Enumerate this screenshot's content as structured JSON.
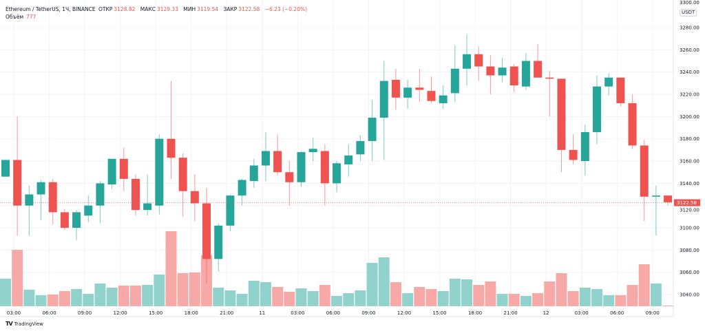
{
  "header": {
    "symbol": "Ethereum / TetherUS, 1Ч, BINANCE",
    "open_label": "ОТКР",
    "open": "3128.82",
    "high_label": "МАКС",
    "high": "3129.33",
    "low_label": "МИН",
    "low": "3119.54",
    "close_label": "ЗАКР",
    "close": "3122.58",
    "change": "−6.23 (−0.20%)",
    "volume_label": "Объём",
    "volume": "777"
  },
  "currency": "USDT",
  "branding": "TradingView",
  "colors": {
    "up": "#26a69a",
    "down": "#ef5350",
    "up_volume": "#92d2cc",
    "down_volume": "#f7a9a7",
    "grid": "#f0f3fa"
  },
  "chart_data": {
    "type": "candlestick",
    "title": "Ethereum / TetherUS, 1Ч, BINANCE",
    "ylim": [
      3030,
      3300
    ],
    "yticks": [
      "3280.00",
      "3260.00",
      "3240.00",
      "3220.00",
      "3200.00",
      "3180.00",
      "3160.00",
      "3140.00",
      "3120.00",
      "3100.00",
      "3080.00",
      "3060.00",
      "3040.00"
    ],
    "ytick_top_partial": "3300.00",
    "last_price": "3122.58",
    "grid": true,
    "xticks": [
      "03:00",
      "06:00",
      "09:00",
      "12:00",
      "15:00",
      "18:00",
      "21:00",
      "11",
      "03:00",
      "06:00",
      "09:00",
      "12:00",
      "15:00",
      "18:00",
      "21:00",
      "12",
      "03:00",
      "06:00",
      "09:00"
    ],
    "ohlc": [
      [
        3146,
        3161,
        3146,
        3161
      ],
      [
        3161,
        3200,
        3093,
        3120
      ],
      [
        3120,
        3138,
        3093,
        3130
      ],
      [
        3130,
        3143,
        3107,
        3141
      ],
      [
        3141,
        3144,
        3103,
        3114
      ],
      [
        3114,
        3117,
        3098,
        3100
      ],
      [
        3100,
        3116,
        3089,
        3114
      ],
      [
        3111,
        3129,
        3105,
        3120
      ],
      [
        3120,
        3142,
        3104,
        3140
      ],
      [
        3139,
        3162,
        3135,
        3162
      ],
      [
        3162,
        3172,
        3133,
        3144
      ],
      [
        3144,
        3148,
        3111,
        3116
      ],
      [
        3116,
        3148,
        3111,
        3122
      ],
      [
        3120,
        3184,
        3112,
        3180
      ],
      [
        3180,
        3232,
        3144,
        3163
      ],
      [
        3163,
        3167,
        3110,
        3133
      ],
      [
        3133,
        3148,
        3106,
        3122
      ],
      [
        3122,
        3136,
        3050,
        3072
      ],
      [
        3072,
        3104,
        3061,
        3102
      ],
      [
        3102,
        3130,
        3097,
        3129
      ],
      [
        3129,
        3144,
        3120,
        3143
      ],
      [
        3142,
        3162,
        3136,
        3156
      ],
      [
        3156,
        3186,
        3142,
        3169
      ],
      [
        3169,
        3184,
        3147,
        3150
      ],
      [
        3150,
        3160,
        3120,
        3141
      ],
      [
        3141,
        3169,
        3137,
        3168
      ],
      [
        3168,
        3181,
        3160,
        3171
      ],
      [
        3169,
        3175,
        3120,
        3140
      ],
      [
        3140,
        3160,
        3132,
        3158
      ],
      [
        3157,
        3175,
        3146,
        3165
      ],
      [
        3166,
        3183,
        3160,
        3178
      ],
      [
        3178,
        3215,
        3160,
        3199
      ],
      [
        3199,
        3250,
        3161,
        3232
      ],
      [
        3233,
        3243,
        3206,
        3217
      ],
      [
        3217,
        3233,
        3207,
        3226
      ],
      [
        3226,
        3243,
        3213,
        3224
      ],
      [
        3223,
        3236,
        3212,
        3214
      ],
      [
        3212,
        3228,
        3207,
        3219
      ],
      [
        3221,
        3264,
        3213,
        3243
      ],
      [
        3243,
        3274,
        3228,
        3256
      ],
      [
        3256,
        3263,
        3232,
        3245
      ],
      [
        3245,
        3255,
        3220,
        3237
      ],
      [
        3237,
        3253,
        3231,
        3244
      ],
      [
        3245,
        3247,
        3222,
        3228
      ],
      [
        3227,
        3257,
        3224,
        3250
      ],
      [
        3250,
        3265,
        3235,
        3235
      ],
      [
        3235,
        3241,
        3200,
        3234
      ],
      [
        3234,
        3234,
        3150,
        3170
      ],
      [
        3170,
        3184,
        3157,
        3161
      ],
      [
        3160,
        3193,
        3147,
        3186
      ],
      [
        3186,
        3237,
        3175,
        3227
      ],
      [
        3227,
        3239,
        3219,
        3235
      ],
      [
        3235,
        3235,
        3209,
        3212
      ],
      [
        3212,
        3220,
        3171,
        3174
      ],
      [
        3174,
        3179,
        3106,
        3128
      ],
      [
        3128,
        3138,
        3093,
        3129
      ],
      [
        3129,
        3129,
        3120,
        3123
      ]
    ],
    "ohlc_order": [
      "open",
      "high",
      "low",
      "close"
    ],
    "volume": [
      40,
      82,
      24,
      16,
      17,
      22,
      25,
      18,
      33,
      27,
      30,
      30,
      31,
      46,
      109,
      48,
      49,
      74,
      27,
      23,
      18,
      37,
      35,
      28,
      21,
      26,
      22,
      31,
      15,
      19,
      23,
      63,
      71,
      35,
      19,
      28,
      25,
      22,
      40,
      39,
      31,
      36,
      18,
      18,
      15,
      19,
      36,
      48,
      22,
      27,
      25,
      16,
      16,
      31,
      61,
      33,
      1
    ]
  }
}
